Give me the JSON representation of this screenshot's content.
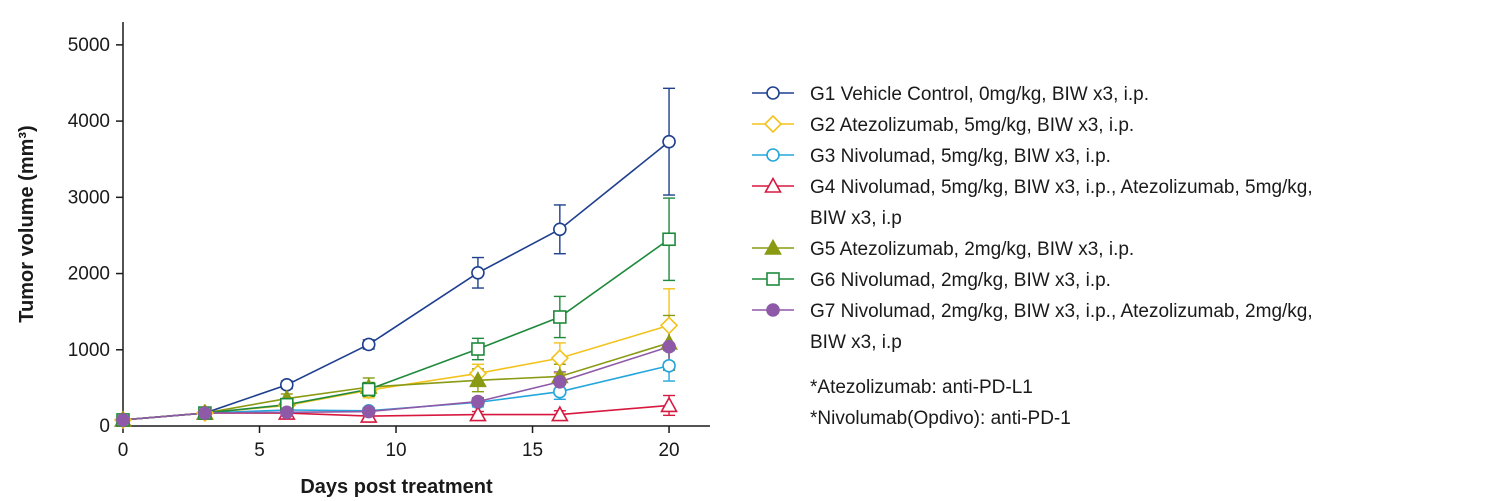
{
  "chart_data": {
    "type": "line",
    "title": "",
    "xlabel": "Days post treatment",
    "ylabel": "Tumor volume (mm³)",
    "xlim": [
      0,
      21.5
    ],
    "ylim": [
      0,
      5300
    ],
    "xticks": [
      0,
      5,
      10,
      15,
      20
    ],
    "yticks": [
      0,
      1000,
      2000,
      3000,
      4000,
      5000
    ],
    "grid": false,
    "legend_position": "right",
    "x": [
      0,
      3,
      6,
      9,
      13,
      16,
      20
    ],
    "series": [
      {
        "name": "G1 Vehicle Control, 0mg/kg, BIW x3, i.p.",
        "legend_lines": [
          "G1 Vehicle Control, 0mg/kg, BIW x3, i.p."
        ],
        "color": "#1f3f8f",
        "marker": "circle",
        "filled": false,
        "values": [
          80,
          170,
          540,
          1070,
          2010,
          2580,
          3730
        ],
        "errors": [
          20,
          30,
          50,
          60,
          200,
          320,
          700
        ]
      },
      {
        "name": "G2 Atezolizumab, 5mg/kg, BIW x3, i.p.",
        "legend_lines": [
          "G2 Atezolizumab, 5mg/kg, BIW x3, i.p."
        ],
        "color": "#f2c31c",
        "marker": "diamond",
        "filled": false,
        "values": [
          80,
          170,
          270,
          470,
          690,
          890,
          1320
        ],
        "errors": [
          20,
          40,
          50,
          100,
          120,
          200,
          480
        ]
      },
      {
        "name": "G3 Nivolumad, 5mg/kg, BIW x3, i.p.",
        "legend_lines": [
          "G3 Nivolumad, 5mg/kg, BIW x3, i.p."
        ],
        "color": "#25a6dc",
        "marker": "circle",
        "filled": false,
        "values": [
          80,
          170,
          210,
          200,
          310,
          450,
          790
        ],
        "errors": [
          20,
          30,
          40,
          40,
          60,
          100,
          200
        ]
      },
      {
        "name": "G4 Nivolumad, 5mg/kg, BIW x3, i.p., Atezolizumab, 5mg/kg, BIW x3, i.p",
        "legend_lines": [
          "G4 Nivolumad, 5mg/kg, BIW x3, i.p., Atezolizumab, 5mg/kg,",
          "BIW x3, i.p"
        ],
        "color": "#d7193f",
        "marker": "triangle",
        "filled": false,
        "values": [
          80,
          170,
          170,
          130,
          150,
          150,
          270
        ],
        "errors": [
          20,
          30,
          30,
          30,
          40,
          50,
          130
        ]
      },
      {
        "name": "G5 Atezolizumab, 2mg/kg, BIW x3, i.p.",
        "legend_lines": [
          "G5 Atezolizumab, 2mg/kg, BIW x3, i.p."
        ],
        "color": "#8a9a12",
        "marker": "triangle",
        "filled": true,
        "values": [
          80,
          170,
          360,
          510,
          600,
          650,
          1090
        ],
        "errors": [
          20,
          30,
          60,
          120,
          150,
          160,
          360
        ]
      },
      {
        "name": "G6 Nivolumad, 2mg/kg, BIW x3, i.p.",
        "legend_lines": [
          "G6 Nivolumad, 2mg/kg, BIW x3, i.p."
        ],
        "color": "#1f8a3c",
        "marker": "square",
        "filled": false,
        "values": [
          80,
          170,
          280,
          480,
          1010,
          1430,
          2450
        ],
        "errors": [
          20,
          30,
          50,
          90,
          140,
          270,
          540
        ]
      },
      {
        "name": "G7 Nivolumad, 2mg/kg, BIW x3, i.p., Atezolizumab, 2mg/kg, BIW x3, i.p",
        "legend_lines": [
          "G7 Nivolumad, 2mg/kg, BIW x3, i.p., Atezolizumab, 2mg/kg,",
          "BIW x3, i.p"
        ],
        "color": "#8e5aa8",
        "marker": "circle",
        "filled": true,
        "values": [
          80,
          170,
          180,
          190,
          320,
          580,
          1040
        ],
        "errors": [
          20,
          30,
          30,
          30,
          50,
          130,
          300
        ]
      }
    ],
    "footnotes": [
      "*Atezolizumab: anti-PD-L1",
      "*Nivolumab(Opdivo): anti-PD-1"
    ]
  }
}
